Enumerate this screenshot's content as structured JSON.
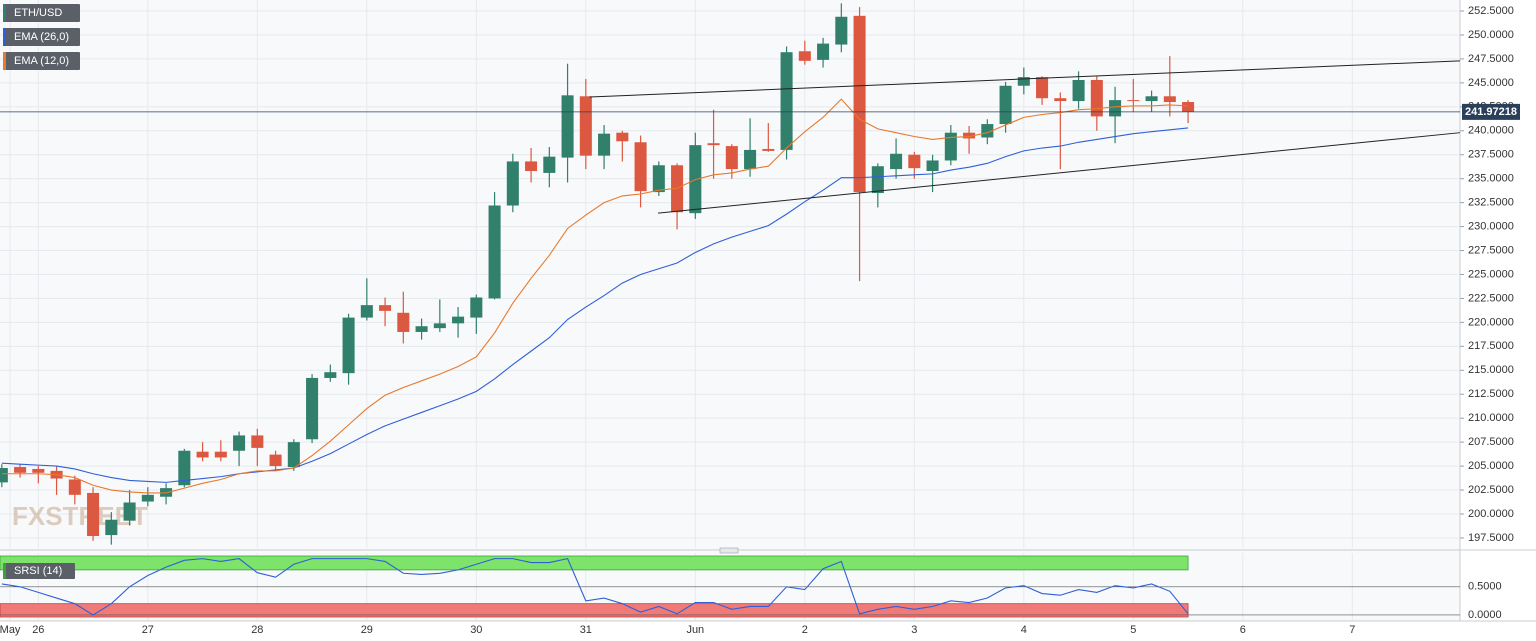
{
  "chart_data": [
    {
      "type": "candlestick",
      "name": "ETH/USD",
      "up_color": "#31806b",
      "down_color": "#dd5840",
      "xlim": [
        -0.1,
        79.9
      ],
      "ylim": [
        196.45,
        253.65
      ],
      "grid": true,
      "xticks": [
        {
          "value": 0.45,
          "label": "May"
        },
        {
          "value": 2,
          "label": "26"
        },
        {
          "value": 8,
          "label": "27"
        },
        {
          "value": 14,
          "label": "28"
        },
        {
          "value": 20,
          "label": "29"
        },
        {
          "value": 26,
          "label": "30"
        },
        {
          "value": 32,
          "label": "31"
        },
        {
          "value": 38,
          "label": "Jun"
        },
        {
          "value": 44,
          "label": "2"
        },
        {
          "value": 50,
          "label": "3"
        },
        {
          "value": 56,
          "label": "4"
        },
        {
          "value": 62,
          "label": "5"
        },
        {
          "value": 68,
          "label": "6"
        },
        {
          "value": 74,
          "label": "7"
        }
      ],
      "yticks": [
        {
          "value": 197.5,
          "label": "197.5000"
        },
        {
          "value": 200,
          "label": "200.0000"
        },
        {
          "value": 202.5,
          "label": "202.5000"
        },
        {
          "value": 205,
          "label": "205.0000"
        },
        {
          "value": 207.5,
          "label": "207.5000"
        },
        {
          "value": 210,
          "label": "210.0000"
        },
        {
          "value": 212.5,
          "label": "212.5000"
        },
        {
          "value": 215,
          "label": "215.0000"
        },
        {
          "value": 217.5,
          "label": "217.5000"
        },
        {
          "value": 220,
          "label": "220.0000"
        },
        {
          "value": 222.5,
          "label": "222.5000"
        },
        {
          "value": 225,
          "label": "225.0000"
        },
        {
          "value": 227.5,
          "label": "227.5000"
        },
        {
          "value": 230,
          "label": "230.0000"
        },
        {
          "value": 232.5,
          "label": "232.5000"
        },
        {
          "value": 235,
          "label": "235.0000"
        },
        {
          "value": 237.5,
          "label": "237.5000"
        },
        {
          "value": 240,
          "label": "240.0000"
        },
        {
          "value": 242.5,
          "label": "242.5000"
        },
        {
          "value": 245,
          "label": "245.0000"
        },
        {
          "value": 247.5,
          "label": "247.5000"
        },
        {
          "value": 250,
          "label": "250.0000"
        },
        {
          "value": 252.5,
          "label": "252.5000"
        }
      ],
      "open": [
        203.3,
        204.9,
        204.7,
        204.5,
        203.6,
        202.2,
        197.8,
        199.3,
        201.3,
        201.8,
        203.0,
        206.5,
        206.5,
        206.6,
        208.2,
        206.2,
        204.9,
        207.8,
        214.2,
        214.7,
        220.5,
        221.8,
        221.0,
        219.0,
        219.4,
        219.9,
        220.5,
        222.5,
        232.2,
        236.8,
        235.6,
        237.2,
        243.6,
        237.4,
        239.8,
        238.8,
        233.6,
        236.4,
        231.4,
        238.7,
        238.4,
        236.0,
        238.1,
        238.0,
        248.3,
        247.4,
        249.0,
        252.0,
        233.5,
        236.0,
        237.5,
        235.8,
        236.9,
        239.8,
        239.3,
        240.7,
        244.7,
        245.6,
        243.4,
        243.1,
        245.3,
        241.5,
        243.2,
        243.1,
        243.6,
        243.0
      ],
      "high": [
        205.2,
        205.2,
        205.0,
        205.0,
        204.0,
        202.8,
        200.2,
        202.5,
        202.8,
        203.2,
        206.8,
        207.5,
        207.7,
        208.6,
        208.9,
        206.6,
        207.8,
        214.6,
        215.6,
        220.9,
        224.6,
        222.6,
        223.2,
        220.4,
        222.4,
        221.6,
        222.9,
        233.6,
        237.6,
        238.2,
        238.3,
        247.0,
        245.4,
        240.6,
        240.0,
        239.5,
        236.8,
        236.6,
        239.8,
        242.2,
        238.6,
        241.3,
        240.8,
        248.8,
        249.4,
        249.7,
        253.3,
        252.9,
        236.6,
        239.2,
        237.8,
        237.5,
        240.6,
        240.5,
        241.2,
        245.1,
        246.6,
        245.7,
        244.0,
        246.2,
        245.7,
        244.6,
        245.4,
        244.2,
        247.8,
        243.2
      ],
      "low": [
        202.8,
        203.8,
        203.2,
        202.0,
        201.0,
        197.2,
        196.8,
        198.8,
        200.8,
        201.0,
        202.8,
        205.5,
        205.5,
        205.0,
        205.0,
        204.6,
        204.5,
        207.4,
        213.8,
        213.5,
        220.2,
        219.6,
        217.8,
        218.2,
        219.0,
        218.4,
        218.8,
        222.4,
        231.5,
        234.6,
        234.1,
        234.6,
        236.0,
        236.0,
        236.8,
        232.0,
        233.2,
        229.7,
        230.8,
        235.0,
        235.0,
        235.2,
        237.8,
        237.0,
        246.9,
        246.6,
        248.2,
        224.3,
        232.0,
        235.0,
        235.0,
        233.6,
        236.4,
        237.6,
        238.6,
        239.8,
        243.8,
        242.7,
        236.0,
        242.3,
        240.0,
        238.7,
        242.0,
        242.0,
        241.5,
        240.8
      ],
      "close": [
        204.8,
        204.3,
        204.3,
        203.7,
        202.0,
        197.7,
        199.4,
        201.2,
        202.0,
        202.7,
        206.6,
        205.9,
        205.9,
        208.2,
        206.9,
        205.0,
        207.5,
        214.2,
        214.8,
        220.5,
        221.8,
        221.2,
        219.0,
        219.6,
        219.9,
        220.6,
        222.6,
        232.2,
        236.8,
        235.8,
        237.3,
        243.7,
        237.4,
        239.7,
        238.9,
        233.7,
        236.4,
        231.5,
        238.5,
        238.5,
        236.0,
        238.0,
        237.9,
        248.2,
        247.3,
        249.1,
        251.9,
        233.6,
        236.3,
        237.6,
        236.1,
        236.9,
        239.8,
        239.2,
        240.7,
        244.7,
        245.6,
        243.4,
        243.1,
        245.3,
        241.5,
        243.2,
        243.1,
        243.6,
        243.0,
        241.97218
      ],
      "lines": [
        {
          "name": "EMA (26,0)",
          "color": "#2f5fd8",
          "values": [
            205.3,
            205.2,
            205.1,
            205.0,
            204.7,
            204.2,
            203.8,
            203.5,
            203.4,
            203.3,
            203.5,
            203.7,
            203.9,
            204.2,
            204.4,
            204.6,
            204.8,
            205.5,
            206.3,
            207.3,
            208.3,
            209.2,
            209.9,
            210.6,
            211.3,
            212.0,
            212.8,
            214.1,
            215.6,
            217.0,
            218.4,
            220.3,
            221.6,
            222.8,
            224.1,
            225.0,
            225.6,
            226.2,
            227.3,
            228.2,
            228.9,
            229.5,
            230.1,
            231.3,
            232.6,
            233.8,
            235.1,
            235.1,
            235.2,
            235.3,
            235.4,
            235.5,
            235.9,
            236.2,
            236.6,
            237.3,
            237.9,
            238.2,
            238.4,
            238.8,
            239.1,
            239.4,
            239.7,
            239.9,
            240.1,
            240.3
          ]
        },
        {
          "name": "EMA (12,0)",
          "color": "#e8792d",
          "values": [
            204.2,
            204.2,
            204.2,
            204.1,
            203.8,
            203.0,
            202.5,
            202.3,
            202.2,
            202.2,
            202.7,
            203.2,
            203.6,
            204.2,
            204.5,
            204.5,
            204.8,
            206.1,
            207.6,
            209.3,
            211.0,
            212.4,
            213.2,
            213.9,
            214.6,
            215.4,
            216.4,
            218.9,
            222.0,
            224.6,
            227.0,
            229.8,
            231.2,
            232.5,
            233.2,
            233.4,
            233.8,
            234.0,
            234.9,
            235.4,
            235.6,
            236.0,
            236.3,
            238.2,
            239.9,
            241.4,
            243.3,
            241.2,
            240.2,
            239.8,
            239.4,
            239.1,
            239.3,
            239.4,
            239.8,
            240.6,
            241.4,
            241.7,
            241.9,
            242.2,
            242.3,
            242.5,
            242.6,
            242.6,
            242.7,
            242.6
          ]
        }
      ],
      "trendlines": [
        {
          "x": [
            32.2,
            79.9
          ],
          "y": [
            243.52,
            247.3
          ]
        },
        {
          "x": [
            35.96,
            79.9
          ],
          "y": [
            231.4,
            239.8
          ]
        }
      ],
      "last_price": 241.97218,
      "watermark": "FXSTREET"
    },
    {
      "type": "line",
      "name": "SRSI (14)",
      "color": "#2f5fd8",
      "ylim": [
        -0.09,
        1.1
      ],
      "yticks": [
        {
          "value": 0.5,
          "label": "0.5000"
        },
        {
          "value": 0,
          "label": "0.0000"
        }
      ],
      "overbought": 0.8,
      "oversold": 0.2,
      "overbought_color": "#7de36b",
      "oversold_color": "#f07a78",
      "values": [
        0.55,
        0.5,
        0.4,
        0.3,
        0.2,
        0.0,
        0.2,
        0.5,
        0.7,
        0.85,
        0.97,
        1.0,
        0.95,
        1.0,
        0.75,
        0.67,
        0.9,
        1.0,
        1.0,
        1.0,
        1.0,
        0.95,
        0.74,
        0.72,
        0.74,
        0.8,
        0.9,
        1.0,
        1.0,
        0.93,
        0.93,
        1.0,
        0.25,
        0.3,
        0.2,
        0.05,
        0.15,
        0.02,
        0.22,
        0.22,
        0.1,
        0.15,
        0.15,
        0.5,
        0.45,
        0.82,
        0.95,
        0.02,
        0.1,
        0.15,
        0.1,
        0.15,
        0.25,
        0.22,
        0.3,
        0.48,
        0.52,
        0.38,
        0.35,
        0.45,
        0.4,
        0.52,
        0.48,
        0.55,
        0.42,
        0.02
      ]
    }
  ]
}
